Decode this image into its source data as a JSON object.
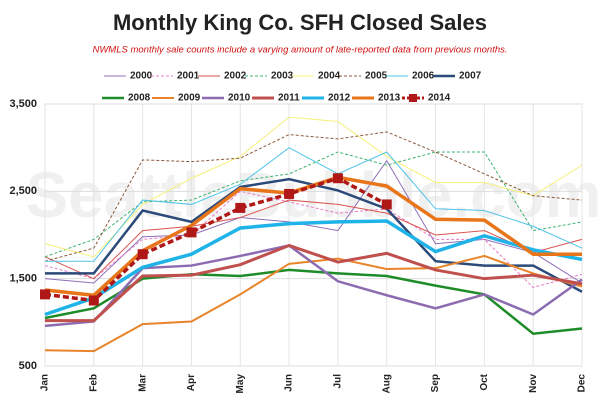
{
  "chart_data": {
    "type": "line",
    "title": "Monthly King Co. SFH Closed Sales",
    "subtitle": "NWMLS monthly sale counts include a varying amount of late-reported data from previous months.",
    "watermark": "SeattleBubble.com",
    "categories": [
      "Jan",
      "Feb",
      "Mar",
      "Apr",
      "May",
      "Jun",
      "Jul",
      "Aug",
      "Sep",
      "Oct",
      "Nov",
      "Dec"
    ],
    "ylim": [
      500,
      3500
    ],
    "yticks": [
      500,
      {
        "value": 1500,
        "label": "1,500"
      },
      {
        "value": 2500,
        "label": "2,500"
      },
      {
        "value": 3500,
        "label": "3,500"
      }
    ],
    "grid": true,
    "series": [
      {
        "name": "2000",
        "color": "#8e6fb8",
        "line_width": 1,
        "values": [
          1500,
          1450,
          1980,
          2000,
          2200,
          2150,
          2050,
          2850,
          1900,
          1950,
          1800,
          1450
        ]
      },
      {
        "name": "2001",
        "color": "#e87bc8",
        "line_width": 1,
        "dashed": true,
        "values": [
          1650,
          1500,
          1950,
          2000,
          2500,
          2380,
          2250,
          2300,
          1950,
          1950,
          1400,
          1550
        ]
      },
      {
        "name": "2002",
        "color": "#d9534f",
        "line_width": 1,
        "values": [
          1750,
          1500,
          2050,
          2100,
          2200,
          2400,
          2350,
          2250,
          2000,
          2050,
          1800,
          1950
        ]
      },
      {
        "name": "2003",
        "color": "#3cb371",
        "line_width": 1,
        "dashed": true,
        "values": [
          1750,
          1950,
          2380,
          2400,
          2620,
          2700,
          2950,
          2800,
          2950,
          2950,
          2050,
          2150
        ]
      },
      {
        "name": "2004",
        "color": "#f5f07a",
        "line_width": 1,
        "values": [
          1900,
          1750,
          2350,
          2650,
          2900,
          3350,
          3300,
          2900,
          2600,
          2600,
          2450,
          2800
        ]
      },
      {
        "name": "2005",
        "color": "#8b5a3c",
        "line_width": 1,
        "dashed": true,
        "values": [
          1700,
          1850,
          2860,
          2840,
          2880,
          3150,
          3100,
          3180,
          2950,
          2700,
          2450,
          2400
        ]
      },
      {
        "name": "2006",
        "color": "#4fc3e8",
        "line_width": 1,
        "values": [
          1700,
          1700,
          2400,
          2350,
          2580,
          3000,
          2700,
          2950,
          2300,
          2280,
          2100,
          1850
        ]
      },
      {
        "name": "2007",
        "color": "#2b4a7a",
        "line_width": 2.5,
        "values": [
          1560,
          1560,
          2280,
          2150,
          2550,
          2640,
          2510,
          2300,
          1700,
          1650,
          1650,
          1350
        ]
      },
      {
        "name": "2008",
        "color": "#1f8c2a",
        "line_width": 2.5,
        "values": [
          1050,
          1160,
          1500,
          1550,
          1530,
          1600,
          1560,
          1530,
          1420,
          1320,
          870,
          930
        ]
      },
      {
        "name": "2009",
        "color": "#e8842a",
        "line_width": 2,
        "values": [
          680,
          670,
          980,
          1010,
          1320,
          1670,
          1730,
          1610,
          1620,
          1760,
          1560,
          1410
        ]
      },
      {
        "name": "2010",
        "color": "#8c6bb1",
        "line_width": 2.5,
        "values": [
          960,
          1010,
          1620,
          1650,
          1760,
          1880,
          1470,
          1310,
          1160,
          1320,
          1090,
          1490
        ]
      },
      {
        "name": "2011",
        "color": "#c0504d",
        "line_width": 3,
        "values": [
          1020,
          1020,
          1530,
          1540,
          1660,
          1880,
          1690,
          1790,
          1600,
          1500,
          1540,
          1440
        ]
      },
      {
        "name": "2012",
        "color": "#1fb3e8",
        "line_width": 3.5,
        "values": [
          1090,
          1280,
          1630,
          1780,
          2080,
          2130,
          2150,
          2160,
          1810,
          1990,
          1830,
          1720
        ]
      },
      {
        "name": "2013",
        "color": "#e8751a",
        "line_width": 3.5,
        "values": [
          1370,
          1310,
          1820,
          2110,
          2530,
          2480,
          2660,
          2560,
          2180,
          2170,
          1780,
          1780
        ]
      },
      {
        "name": "2014",
        "color": "#b01818",
        "line_width": 3.5,
        "dashed": true,
        "marker": "square",
        "values": [
          1320,
          1250,
          1780,
          2030,
          2310,
          2470,
          2650,
          2350,
          null,
          null,
          null,
          null
        ]
      }
    ]
  }
}
